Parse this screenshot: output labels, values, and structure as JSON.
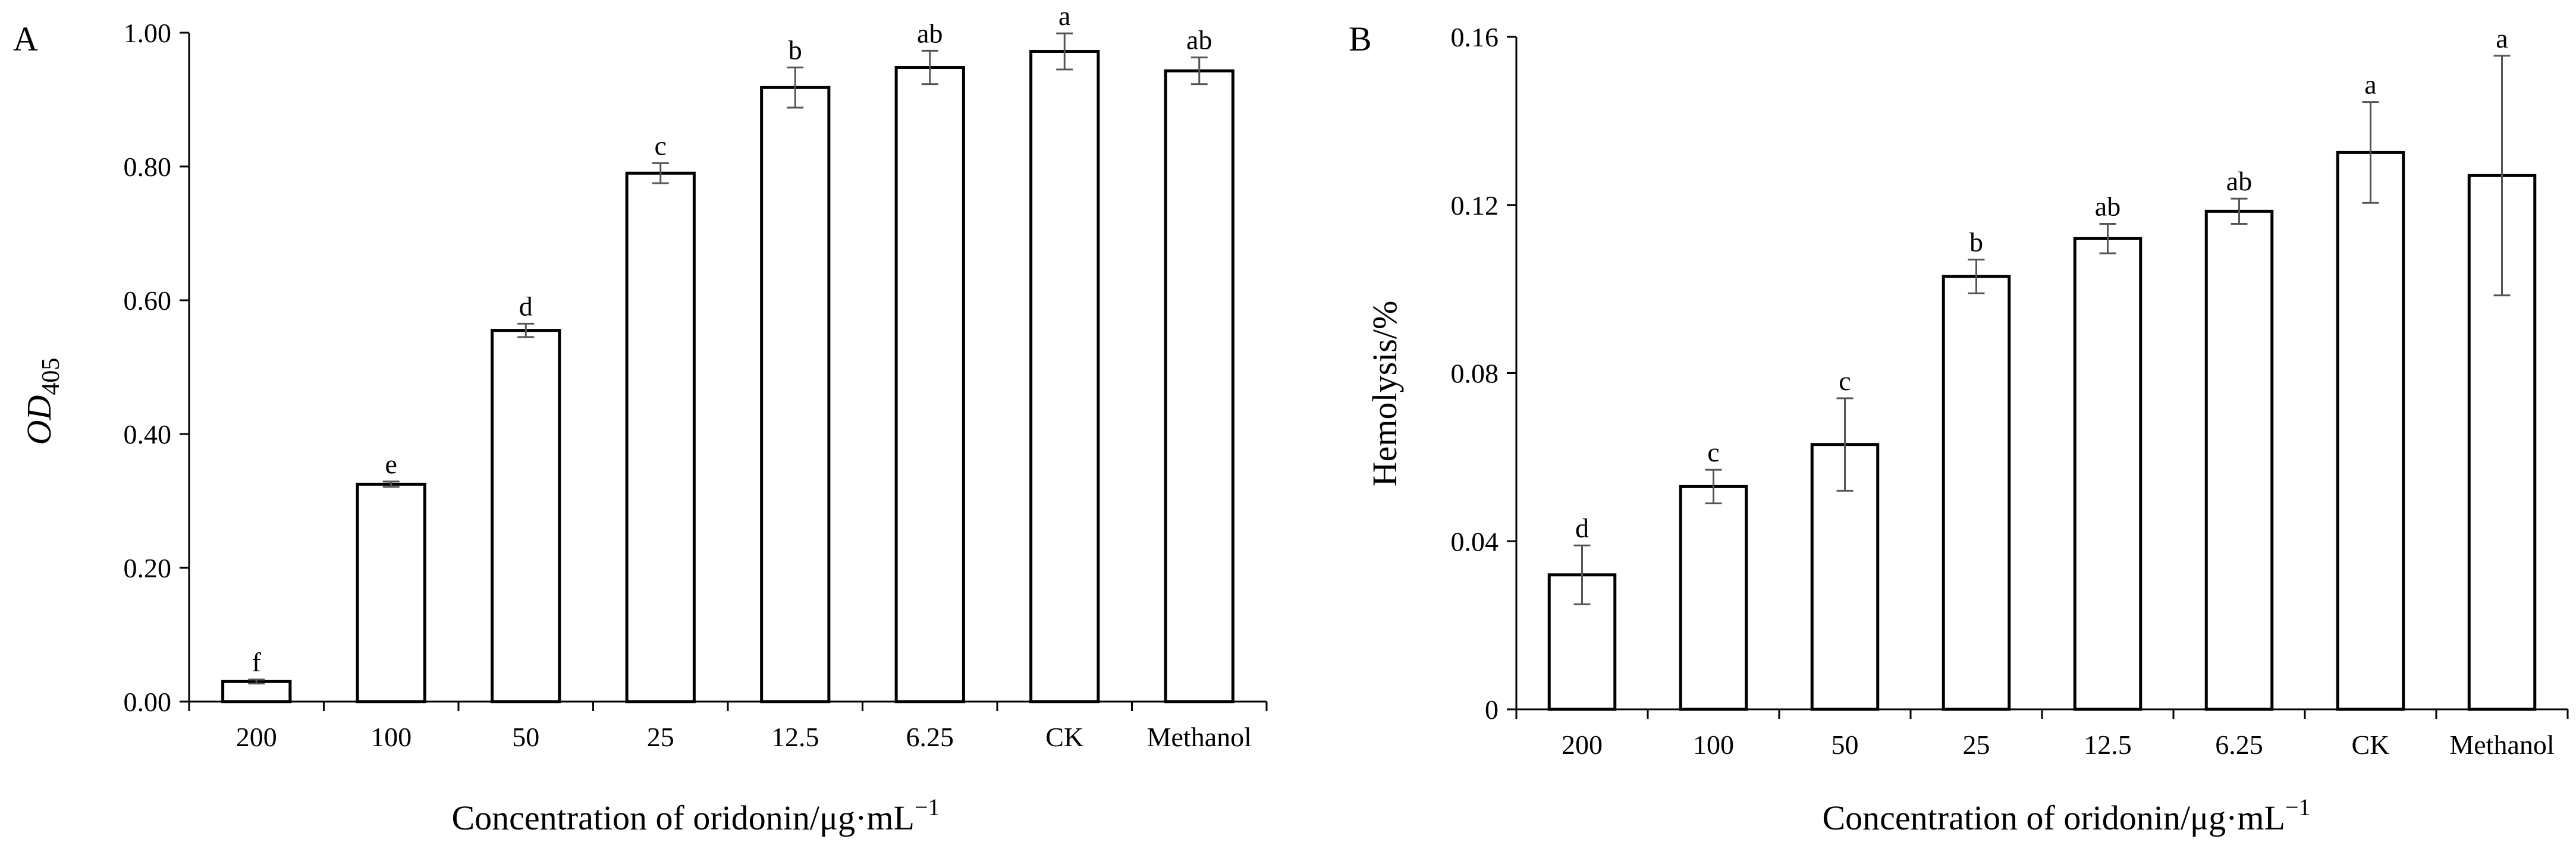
{
  "figure": {
    "panel_a_label": "A",
    "panel_b_label": "B"
  },
  "chart_data": [
    {
      "panel": "A",
      "type": "bar",
      "categories": [
        "200",
        "100",
        "50",
        "25",
        "12.5",
        "6.25",
        "CK",
        "Methanol"
      ],
      "values": [
        0.03,
        0.325,
        0.555,
        0.79,
        0.918,
        0.948,
        0.972,
        0.943
      ],
      "errors": [
        0.003,
        0.004,
        0.01,
        0.015,
        0.03,
        0.025,
        0.027,
        0.02
      ],
      "significance_letters": [
        "f",
        "e",
        "d",
        "c",
        "b",
        "ab",
        "a",
        "ab"
      ],
      "ylim": [
        0,
        1.0
      ],
      "yticks": [
        0,
        0.2,
        0.4,
        0.6,
        0.8,
        1.0
      ],
      "ytick_labels": [
        "0.00",
        "0.20",
        "0.40",
        "0.60",
        "0.80",
        "1.00"
      ],
      "ylabel_main": "OD",
      "ylabel_sub": "405",
      "xlabel_main": "Concentration of oridonin/μg·mL",
      "xlabel_sup": "−1"
    },
    {
      "panel": "B",
      "type": "bar",
      "categories": [
        "200",
        "100",
        "50",
        "25",
        "12.5",
        "6.25",
        "CK",
        "Methanol"
      ],
      "values": [
        0.032,
        0.053,
        0.063,
        0.103,
        0.112,
        0.1185,
        0.1325,
        0.127
      ],
      "errors": [
        0.007,
        0.004,
        0.011,
        0.004,
        0.0035,
        0.003,
        0.012,
        0.0285
      ],
      "significance_letters": [
        "d",
        "c",
        "c",
        "b",
        "ab",
        "ab",
        "a",
        "a"
      ],
      "ylim": [
        0,
        0.16
      ],
      "yticks": [
        0,
        0.04,
        0.08,
        0.12,
        0.16
      ],
      "ytick_labels": [
        "0",
        "0.04",
        "0.08",
        "0.12",
        "0.16"
      ],
      "ylabel_main": "Hemolysis/%",
      "ylabel_sub": "",
      "xlabel_main": "Concentration of oridonin/μg·mL",
      "xlabel_sup": "−1"
    }
  ]
}
